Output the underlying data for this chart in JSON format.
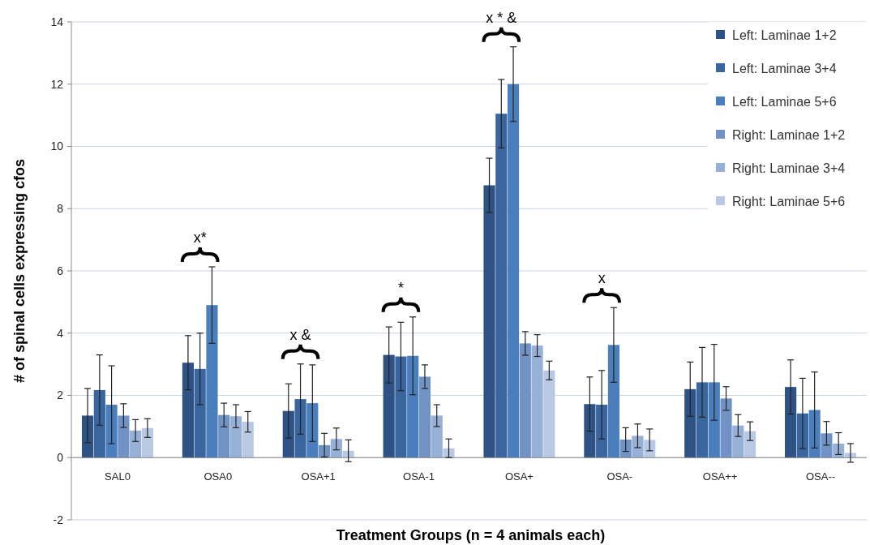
{
  "chart_data": {
    "type": "bar",
    "xlabel": "Treatment Groups (n = 4 animals each)",
    "ylabel": "# of spinal cells expressing cfos",
    "categories": [
      "SAL0",
      "OSA0",
      "OSA+1",
      "OSA-1",
      "OSA+",
      "OSA-",
      "OSA++",
      "OSA--"
    ],
    "series": [
      {
        "name": "Left: Laminae 1+2",
        "color": "#2e5283",
        "values": [
          1.35,
          3.05,
          1.5,
          3.3,
          8.75,
          1.72,
          2.2,
          2.27
        ],
        "errors": [
          0.87,
          0.87,
          0.87,
          0.9,
          0.87,
          0.87,
          0.87,
          0.87
        ]
      },
      {
        "name": "Left: Laminae 3+4",
        "color": "#3a66a0",
        "values": [
          2.17,
          2.85,
          1.88,
          3.25,
          11.05,
          1.7,
          2.42,
          1.42
        ],
        "errors": [
          1.13,
          1.15,
          1.13,
          1.1,
          1.1,
          1.1,
          1.12,
          1.13
        ]
      },
      {
        "name": "Left: Laminae 5+6",
        "color": "#4a7ebd",
        "values": [
          1.7,
          4.9,
          1.75,
          3.27,
          12.0,
          3.62,
          2.42,
          1.53
        ],
        "errors": [
          1.25,
          1.23,
          1.23,
          1.25,
          1.2,
          1.2,
          1.22,
          1.22
        ]
      },
      {
        "name": "Right: Laminae 1+2",
        "color": "#7192c4",
        "values": [
          1.35,
          1.37,
          0.4,
          2.6,
          3.67,
          0.58,
          1.9,
          0.78
        ],
        "errors": [
          0.38,
          0.38,
          0.38,
          0.38,
          0.38,
          0.38,
          0.38,
          0.38
        ]
      },
      {
        "name": "Right: Laminae 3+4",
        "color": "#97b0d6",
        "values": [
          0.87,
          1.33,
          0.6,
          1.35,
          3.6,
          0.7,
          1.03,
          0.45
        ],
        "errors": [
          0.35,
          0.37,
          0.35,
          0.35,
          0.35,
          0.38,
          0.35,
          0.35
        ]
      },
      {
        "name": "Right: Laminae 5+6",
        "color": "#b9c9e3",
        "values": [
          0.95,
          1.15,
          0.22,
          0.3,
          2.8,
          0.57,
          0.85,
          0.15
        ],
        "errors": [
          0.3,
          0.33,
          0.35,
          0.3,
          0.3,
          0.35,
          0.3,
          0.3
        ]
      }
    ],
    "annotations": [
      "x*",
      "x &",
      "*",
      "x * &",
      "x"
    ],
    "ylim": [
      -2,
      14
    ],
    "yticks": [
      -2,
      0,
      2,
      4,
      6,
      8,
      10,
      12,
      14
    ],
    "grid": "y",
    "legend": "top right"
  }
}
